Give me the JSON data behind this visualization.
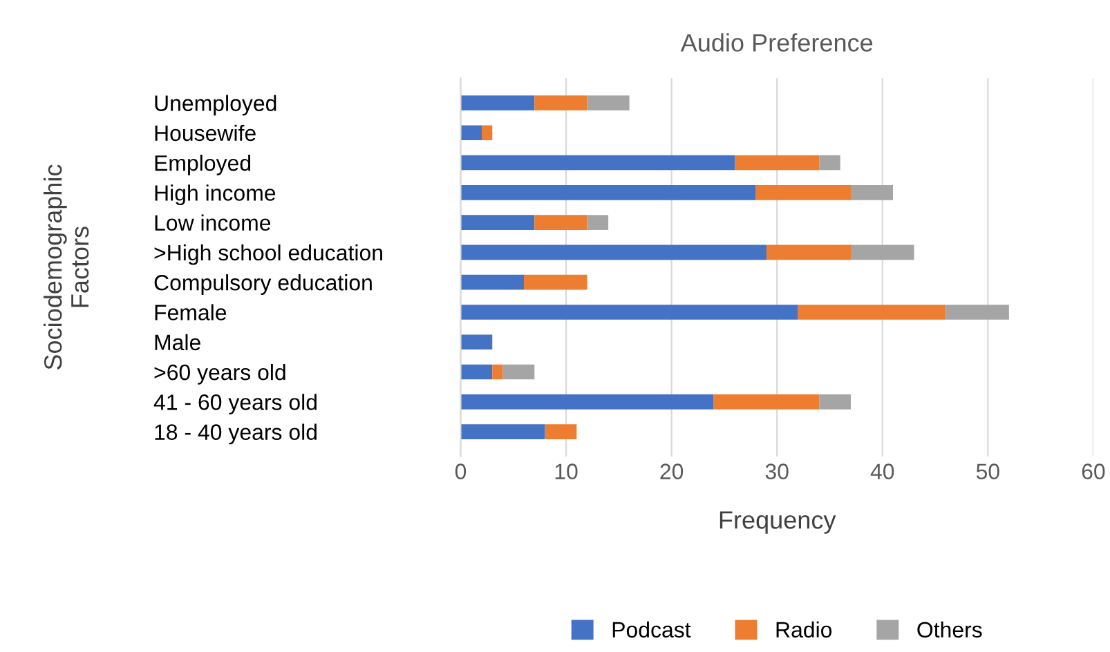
{
  "chart_data": {
    "type": "bar",
    "orientation": "horizontal",
    "stacked": true,
    "title": "Audio Preference",
    "xlabel": "Frequency",
    "ylabel": "Sociodemographic\nFactors",
    "categories": [
      "Unemployed",
      "Housewife",
      "Employed",
      "High income",
      "Low income",
      ">High school education",
      "Compulsory education",
      "Female",
      "Male",
      ">60 years old",
      "41 - 60 years old",
      "18 - 40 years old"
    ],
    "series": [
      {
        "name": "Podcast",
        "color": "#4472c4",
        "values": [
          7,
          2,
          26,
          28,
          7,
          29,
          6,
          32,
          3,
          3,
          24,
          8
        ]
      },
      {
        "name": "Radio",
        "color": "#ed7d31",
        "values": [
          5,
          1,
          8,
          9,
          5,
          8,
          6,
          14,
          0,
          1,
          10,
          3
        ]
      },
      {
        "name": "Others",
        "color": "#a5a5a5",
        "values": [
          4,
          0,
          2,
          4,
          2,
          6,
          0,
          6,
          0,
          3,
          3,
          0
        ]
      }
    ],
    "xlim": [
      0,
      60
    ],
    "xticks": [
      0,
      10,
      20,
      30,
      40,
      50,
      60
    ],
    "grid": "x",
    "legend": "bottom"
  }
}
